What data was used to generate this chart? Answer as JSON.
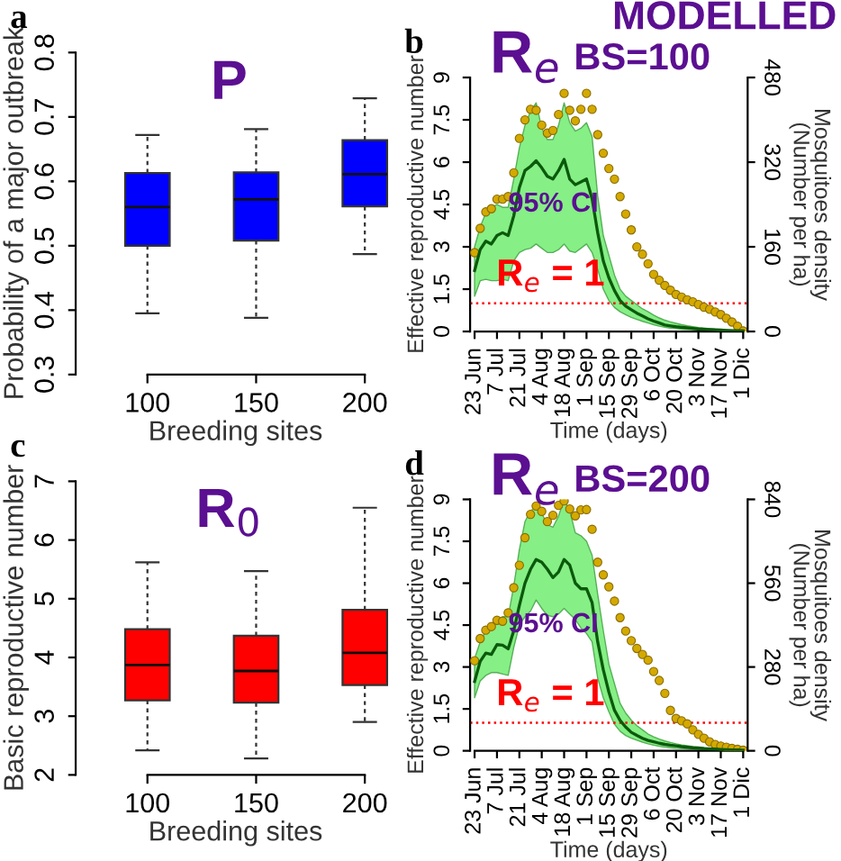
{
  "chart_data": [
    {
      "type": "box",
      "title": "P",
      "xlabel": "Breeding sites",
      "ylabel": "Probability of a major outbreak",
      "categories": [
        "100",
        "150",
        "200"
      ],
      "ylim": [
        0.3,
        0.8
      ],
      "yticks": [
        0.3,
        0.4,
        0.5,
        0.6,
        0.7,
        0.8
      ],
      "annotations": [
        "a"
      ],
      "series": [
        {
          "color": "#0000ff",
          "boxes": [
            {
              "low": 0.395,
              "q1": 0.5,
              "median": 0.56,
              "q3": 0.613,
              "high": 0.672
            },
            {
              "low": 0.388,
              "q1": 0.508,
              "median": 0.572,
              "q3": 0.614,
              "high": 0.681
            },
            {
              "low": 0.487,
              "q1": 0.561,
              "median": 0.611,
              "q3": 0.664,
              "high": 0.729
            }
          ]
        }
      ]
    },
    {
      "type": "line",
      "title": "R$_{e}$",
      "subtitle": "BS=100",
      "xlabel": "Time (days)",
      "ylabel": "Effective reproductive number",
      "y2label": "Mosquitoes density\n(Number per ha)",
      "annotations": [
        "b",
        "MODELLED",
        "95% CI"
      ],
      "categories": [
        "23 Jun",
        null,
        null,
        null,
        "7 Jul",
        null,
        null,
        null,
        "21 Jul",
        null,
        null,
        null,
        "4 Aug",
        null,
        null,
        null,
        "18 Aug",
        null,
        null,
        null,
        "1 Sep",
        null,
        null,
        null,
        "15 Sep",
        null,
        null,
        null,
        "29 Sep",
        null,
        null,
        null,
        "6 Oct",
        null,
        null,
        null,
        "20 Oct",
        null,
        null,
        null,
        "3 Nov",
        null,
        null,
        null,
        "17 Nov",
        null,
        null,
        null,
        "1 Dic"
      ],
      "ylim": [
        0,
        9
      ],
      "yticks": [
        0,
        1.5,
        3,
        4.5,
        6,
        7.5,
        9
      ],
      "y2lim": [
        0,
        480
      ],
      "y2ticks": [
        0,
        160,
        320,
        480
      ],
      "ref_lines": [
        {
          "axis": "y",
          "value": 1,
          "label": "R$_{e}$ = 1",
          "color": "#ff0000",
          "line_style": "dotted"
        }
      ],
      "series": [
        {
          "type": "line",
          "color": "#0b5a0b",
          "values": [
            2.16,
            2.9,
            3.2,
            3.1,
            3.4,
            3.5,
            3.4,
            4.1,
            5.1,
            5.7,
            5.85,
            6.05,
            5.8,
            5.5,
            5.4,
            5.7,
            6.1,
            5.4,
            5.2,
            5.3,
            5.4,
            4.7,
            3.5,
            2.5,
            1.9,
            1.45,
            1.1,
            0.9,
            0.77,
            0.65,
            0.55,
            0.45,
            0.37,
            0.3,
            0.23,
            0.2,
            0.17,
            0.15,
            0.13,
            0.11,
            0.09,
            0.08,
            0.07,
            0.06,
            0.05,
            0.04,
            0.03,
            0.03,
            0.02
          ],
          "lower": [
            1.25,
            1.8,
            1.85,
            1.8,
            1.8,
            1.85,
            1.8,
            2.5,
            2.8,
            2.9,
            2.95,
            3.1,
            2.95,
            2.8,
            2.8,
            2.9,
            3.1,
            2.85,
            2.8,
            2.95,
            3.1,
            2.8,
            2.2,
            1.5,
            1.1,
            0.85,
            0.7,
            0.6,
            0.5,
            0.43,
            0.36,
            0.3,
            0.24,
            0.19,
            0.15,
            0.12,
            0.1,
            0.08,
            0.07,
            0.06,
            0.05,
            0.04,
            0.04,
            0.03,
            0.02,
            0.02,
            0.01,
            0.01,
            0.0
          ],
          "upper": [
            3.0,
            3.7,
            4.2,
            4.4,
            4.5,
            4.4,
            4.4,
            5.4,
            6.5,
            7.3,
            7.8,
            8.1,
            7.2,
            6.8,
            6.8,
            7.3,
            8.1,
            7.4,
            7.1,
            7.2,
            7.4,
            6.9,
            4.8,
            3.4,
            2.7,
            2.0,
            1.5,
            1.25,
            1.1,
            0.95,
            0.8,
            0.7,
            0.58,
            0.48,
            0.4,
            0.34,
            0.29,
            0.24,
            0.2,
            0.17,
            0.14,
            0.12,
            0.1,
            0.08,
            0.07,
            0.06,
            0.05,
            0.04,
            0.03
          ]
        },
        {
          "type": "scatter",
          "axis": "y2",
          "marker": "circle",
          "color": "#d4a900",
          "values": [
            149,
            195,
            226,
            232,
            250,
            250,
            255,
            300,
            365,
            400,
            420,
            418,
            390,
            375,
            380,
            410,
            450,
            418,
            398,
            420,
            450,
            420,
            372,
            337,
            308,
            288,
            255,
            222,
            192,
            160,
            146,
            128,
            108,
            97,
            87,
            78,
            70,
            65,
            60,
            56,
            51,
            46,
            42,
            37,
            32,
            25,
            18,
            10,
            1
          ]
        }
      ]
    },
    {
      "type": "box",
      "title": "R$_{0}$",
      "xlabel": "Breeding sites",
      "ylabel": "Basic reproductive number",
      "categories": [
        "100",
        "150",
        "200"
      ],
      "ylim": [
        2,
        7
      ],
      "yticks": [
        2,
        3,
        4,
        5,
        6,
        7
      ],
      "annotations": [
        "c"
      ],
      "series": [
        {
          "color": "#ff0000",
          "boxes": [
            {
              "low": 2.42,
              "q1": 3.27,
              "median": 3.87,
              "q3": 4.48,
              "high": 5.62
            },
            {
              "low": 2.28,
              "q1": 3.23,
              "median": 3.77,
              "q3": 4.37,
              "high": 5.47
            },
            {
              "low": 2.9,
              "q1": 3.53,
              "median": 4.08,
              "q3": 4.81,
              "high": 6.55
            }
          ]
        }
      ]
    },
    {
      "type": "line",
      "title": "R$_{e}$",
      "subtitle": "BS=200",
      "xlabel": "Time (days)",
      "ylabel": "Effective reproductive number",
      "y2label": "Mosquitoes density\n(Number per ha)",
      "annotations": [
        "d",
        "95% CI"
      ],
      "categories": [
        "23 Jun",
        null,
        null,
        null,
        "7 Jul",
        null,
        null,
        null,
        "21 Jul",
        null,
        null,
        null,
        "4 Aug",
        null,
        null,
        null,
        "18 Aug",
        null,
        null,
        null,
        "1 Sep",
        null,
        null,
        null,
        "15 Sep",
        null,
        null,
        null,
        "29 Sep",
        null,
        null,
        null,
        "6 Oct",
        null,
        null,
        null,
        "20 Oct",
        null,
        null,
        null,
        "3 Nov",
        null,
        null,
        null,
        "17 Nov",
        null,
        null,
        null,
        "1 Dic"
      ],
      "ylim": [
        0,
        9
      ],
      "yticks": [
        0,
        1.5,
        3,
        4.5,
        6,
        7.5,
        9
      ],
      "y2lim": [
        0,
        840
      ],
      "y2ticks": [
        0,
        280,
        560,
        840
      ],
      "ref_lines": [
        {
          "axis": "y",
          "value": 1,
          "label": "R$_{e}$ = 1",
          "color": "#ff0000",
          "line_style": "dotted"
        }
      ],
      "series": [
        {
          "type": "line",
          "color": "#0b5a0b",
          "values": [
            2.48,
            3.2,
            3.5,
            3.45,
            3.8,
            3.78,
            3.65,
            4.3,
            5.2,
            6.0,
            6.5,
            6.85,
            6.75,
            6.5,
            6.2,
            6.4,
            6.85,
            6.65,
            6.0,
            5.8,
            5.8,
            5.3,
            3.9,
            2.9,
            2.1,
            1.45,
            1.09,
            0.85,
            0.66,
            0.55,
            0.45,
            0.37,
            0.32,
            0.27,
            0.23,
            0.2,
            0.18,
            0.15,
            0.13,
            0.11,
            0.1,
            0.08,
            0.07,
            0.06,
            0.05,
            0.04,
            0.03,
            0.03,
            0.02
          ],
          "lower": [
            1.9,
            2.5,
            2.7,
            2.8,
            2.8,
            2.75,
            2.7,
            3.7,
            4.5,
            4.8,
            5.0,
            5.4,
            5.1,
            4.85,
            4.8,
            4.9,
            5.1,
            4.9,
            4.7,
            4.4,
            4.2,
            3.9,
            2.6,
            1.9,
            1.4,
            0.95,
            0.7,
            0.55,
            0.45,
            0.38,
            0.31,
            0.25,
            0.2,
            0.16,
            0.13,
            0.11,
            0.09,
            0.08,
            0.07,
            0.06,
            0.05,
            0.04,
            0.04,
            0.03,
            0.02,
            0.02,
            0.01,
            0.01,
            0.0
          ],
          "upper": [
            3.3,
            3.9,
            4.3,
            4.55,
            4.7,
            4.8,
            4.8,
            5.9,
            7.2,
            8.2,
            8.6,
            8.7,
            8.5,
            8.1,
            8.0,
            8.4,
            9.0,
            8.6,
            7.8,
            7.7,
            7.5,
            7.0,
            5.6,
            4.3,
            3.1,
            2.4,
            1.7,
            1.35,
            1.1,
            0.9,
            0.75,
            0.6,
            0.5,
            0.42,
            0.35,
            0.3,
            0.25,
            0.21,
            0.18,
            0.15,
            0.13,
            0.11,
            0.09,
            0.08,
            0.06,
            0.05,
            0.04,
            0.04,
            0.03
          ]
        },
        {
          "type": "scatter",
          "axis": "y2",
          "marker": "circle",
          "color": "#d4a900",
          "values": [
            301,
            375,
            403,
            415,
            436,
            433,
            461,
            545,
            620,
            712,
            790,
            818,
            800,
            766,
            787,
            820,
            835,
            808,
            785,
            805,
            806,
            740,
            630,
            588,
            548,
            500,
            445,
            400,
            368,
            342,
            322,
            303,
            265,
            235,
            192,
            135,
            108,
            100,
            90,
            70,
            55,
            42,
            30,
            21,
            16,
            12,
            8,
            5,
            2
          ]
        }
      ]
    }
  ]
}
